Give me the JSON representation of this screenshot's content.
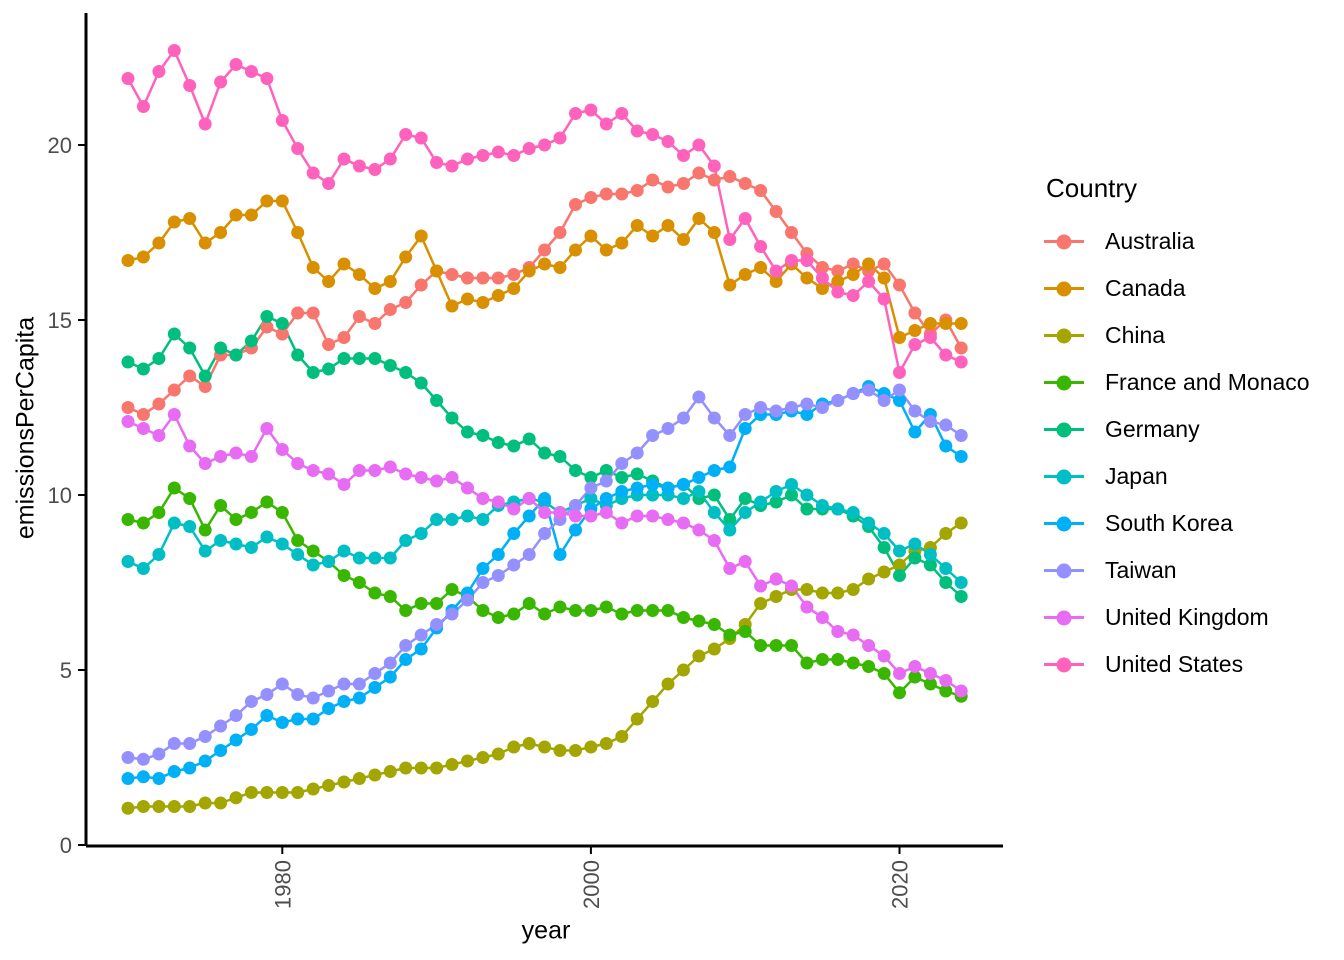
{
  "chart_data": {
    "type": "line",
    "title": "",
    "xlabel": "year",
    "ylabel": "emissionsPerCapita",
    "legend_title": "Country",
    "legend_position": "right",
    "grid": false,
    "theme": "classic",
    "axis_color": "#000000",
    "tick_label_color": "#4d4d4d",
    "xticks": [
      1980,
      2000,
      2020
    ],
    "yticks": [
      0,
      5,
      10,
      15,
      20
    ],
    "xlim": [
      1967.3,
      2026.7
    ],
    "ylim": [
      0,
      23.7
    ],
    "x": [
      1970,
      1971,
      1972,
      1973,
      1974,
      1975,
      1976,
      1977,
      1978,
      1979,
      1980,
      1981,
      1982,
      1983,
      1984,
      1985,
      1986,
      1987,
      1988,
      1989,
      1990,
      1991,
      1992,
      1993,
      1994,
      1995,
      1996,
      1997,
      1998,
      1999,
      2000,
      2001,
      2002,
      2003,
      2004,
      2005,
      2006,
      2007,
      2008,
      2009,
      2010,
      2011,
      2012,
      2013,
      2014,
      2015,
      2016,
      2017,
      2018,
      2019,
      2020,
      2021,
      2022,
      2023,
      2024
    ],
    "series": [
      {
        "name": "Australia",
        "color": "#F8766D",
        "values": [
          12.5,
          12.3,
          12.6,
          13.0,
          13.4,
          13.1,
          14.0,
          14.0,
          14.2,
          14.8,
          14.6,
          15.2,
          15.2,
          14.3,
          14.5,
          15.1,
          14.9,
          15.3,
          15.5,
          16.0,
          16.4,
          16.3,
          16.2,
          16.2,
          16.2,
          16.3,
          16.5,
          17.0,
          17.5,
          18.3,
          18.5,
          18.6,
          18.6,
          18.7,
          19.0,
          18.8,
          18.9,
          19.2,
          19.0,
          19.1,
          18.9,
          18.7,
          18.1,
          17.5,
          16.9,
          16.5,
          16.4,
          16.6,
          16.4,
          16.6,
          16.0,
          15.2,
          14.6,
          15.0,
          14.2
        ]
      },
      {
        "name": "Canada",
        "color": "#D89000",
        "values": [
          16.7,
          16.8,
          17.2,
          17.8,
          17.9,
          17.2,
          17.5,
          18.0,
          18.0,
          18.4,
          18.4,
          17.5,
          16.5,
          16.1,
          16.6,
          16.3,
          15.9,
          16.1,
          16.8,
          17.4,
          16.4,
          15.4,
          15.6,
          15.5,
          15.7,
          15.9,
          16.4,
          16.6,
          16.5,
          17.0,
          17.4,
          17.0,
          17.2,
          17.7,
          17.4,
          17.7,
          17.3,
          17.9,
          17.5,
          16.0,
          16.3,
          16.5,
          16.1,
          16.6,
          16.2,
          15.9,
          16.1,
          16.3,
          16.6,
          16.2,
          14.5,
          14.7,
          14.9,
          14.9,
          14.9
        ]
      },
      {
        "name": "China",
        "color": "#A3A500",
        "values": [
          1.05,
          1.1,
          1.1,
          1.1,
          1.1,
          1.2,
          1.2,
          1.35,
          1.5,
          1.5,
          1.5,
          1.5,
          1.6,
          1.7,
          1.8,
          1.9,
          2.0,
          2.1,
          2.2,
          2.2,
          2.2,
          2.3,
          2.4,
          2.5,
          2.6,
          2.8,
          2.9,
          2.8,
          2.7,
          2.7,
          2.8,
          2.9,
          3.1,
          3.6,
          4.1,
          4.6,
          5.0,
          5.4,
          5.6,
          5.9,
          6.3,
          6.9,
          7.1,
          7.3,
          7.3,
          7.2,
          7.2,
          7.3,
          7.6,
          7.8,
          8.0,
          8.4,
          8.5,
          8.9,
          9.2
        ]
      },
      {
        "name": "France and Monaco",
        "color": "#39B600",
        "values": [
          9.3,
          9.2,
          9.5,
          10.2,
          9.9,
          9.0,
          9.7,
          9.3,
          9.5,
          9.8,
          9.5,
          8.7,
          8.4,
          8.1,
          7.7,
          7.5,
          7.2,
          7.1,
          6.7,
          6.9,
          6.9,
          7.3,
          7.1,
          6.7,
          6.5,
          6.6,
          6.9,
          6.6,
          6.8,
          6.7,
          6.7,
          6.8,
          6.6,
          6.7,
          6.7,
          6.7,
          6.5,
          6.4,
          6.3,
          6.0,
          6.1,
          5.7,
          5.7,
          5.7,
          5.2,
          5.3,
          5.3,
          5.2,
          5.1,
          4.9,
          4.35,
          4.8,
          4.6,
          4.4,
          4.25
        ]
      },
      {
        "name": "Germany",
        "color": "#00BF7D",
        "values": [
          13.8,
          13.6,
          13.9,
          14.6,
          14.2,
          13.4,
          14.2,
          14.0,
          14.4,
          15.1,
          14.9,
          14.0,
          13.5,
          13.6,
          13.9,
          13.9,
          13.9,
          13.7,
          13.5,
          13.2,
          12.7,
          12.2,
          11.8,
          11.7,
          11.5,
          11.4,
          11.6,
          11.2,
          11.1,
          10.7,
          10.5,
          10.7,
          10.5,
          10.6,
          10.4,
          10.2,
          10.3,
          9.9,
          10.0,
          9.3,
          9.9,
          9.7,
          9.8,
          10.0,
          9.6,
          9.6,
          9.6,
          9.4,
          9.1,
          8.5,
          7.7,
          8.2,
          8.0,
          7.5,
          7.1
        ]
      },
      {
        "name": "Japan",
        "color": "#00BFC4",
        "values": [
          8.1,
          7.9,
          8.3,
          9.2,
          9.1,
          8.4,
          8.7,
          8.6,
          8.5,
          8.8,
          8.6,
          8.3,
          8.0,
          8.1,
          8.4,
          8.2,
          8.2,
          8.2,
          8.7,
          8.9,
          9.3,
          9.3,
          9.4,
          9.3,
          9.7,
          9.8,
          9.9,
          9.8,
          9.5,
          9.7,
          9.9,
          9.7,
          9.9,
          10.0,
          10.0,
          10.0,
          9.9,
          10.1,
          9.5,
          9.0,
          9.5,
          9.8,
          10.1,
          10.3,
          10.0,
          9.7,
          9.6,
          9.5,
          9.2,
          8.9,
          8.4,
          8.6,
          8.3,
          7.9,
          7.5
        ]
      },
      {
        "name": "South Korea",
        "color": "#00B0F6",
        "values": [
          1.9,
          1.95,
          1.9,
          2.1,
          2.2,
          2.4,
          2.7,
          3.0,
          3.3,
          3.7,
          3.5,
          3.6,
          3.6,
          3.9,
          4.1,
          4.2,
          4.5,
          4.8,
          5.3,
          5.6,
          6.2,
          6.7,
          7.2,
          7.9,
          8.3,
          8.9,
          9.4,
          9.9,
          8.3,
          9.0,
          9.6,
          9.9,
          10.1,
          10.2,
          10.3,
          10.2,
          10.3,
          10.5,
          10.7,
          10.8,
          11.9,
          12.3,
          12.3,
          12.4,
          12.3,
          12.6,
          12.7,
          12.9,
          13.1,
          12.9,
          12.7,
          11.8,
          12.3,
          11.4,
          11.1
        ]
      },
      {
        "name": "Taiwan",
        "color": "#9590FF",
        "values": [
          2.5,
          2.45,
          2.6,
          2.9,
          2.9,
          3.1,
          3.4,
          3.7,
          4.1,
          4.3,
          4.6,
          4.3,
          4.2,
          4.4,
          4.6,
          4.6,
          4.9,
          5.2,
          5.7,
          6.0,
          6.3,
          6.6,
          7.0,
          7.5,
          7.7,
          8.0,
          8.3,
          8.9,
          9.3,
          9.7,
          10.2,
          10.4,
          10.9,
          11.2,
          11.7,
          11.9,
          12.2,
          12.8,
          12.2,
          11.7,
          12.3,
          12.5,
          12.4,
          12.5,
          12.6,
          12.5,
          12.7,
          12.9,
          13.0,
          12.7,
          13.0,
          12.4,
          12.1,
          12.0,
          11.7
        ]
      },
      {
        "name": "United Kingdom",
        "color": "#E76BF3",
        "values": [
          12.1,
          11.9,
          11.7,
          12.3,
          11.4,
          10.9,
          11.1,
          11.2,
          11.1,
          11.9,
          11.3,
          10.9,
          10.7,
          10.6,
          10.3,
          10.7,
          10.7,
          10.8,
          10.6,
          10.5,
          10.4,
          10.5,
          10.2,
          9.9,
          9.8,
          9.6,
          9.9,
          9.5,
          9.5,
          9.4,
          9.4,
          9.5,
          9.2,
          9.4,
          9.4,
          9.3,
          9.2,
          9.0,
          8.7,
          7.9,
          8.1,
          7.4,
          7.6,
          7.4,
          6.8,
          6.5,
          6.1,
          6.0,
          5.7,
          5.4,
          4.9,
          5.1,
          4.9,
          4.7,
          4.4
        ]
      },
      {
        "name": "United States",
        "color": "#FF62BC",
        "values": [
          21.9,
          21.1,
          22.1,
          22.7,
          21.7,
          20.6,
          21.8,
          22.3,
          22.1,
          21.9,
          20.7,
          19.9,
          19.2,
          18.9,
          19.6,
          19.4,
          19.3,
          19.6,
          20.3,
          20.2,
          19.5,
          19.4,
          19.6,
          19.7,
          19.8,
          19.7,
          19.9,
          20.0,
          20.2,
          20.9,
          21.0,
          20.6,
          20.9,
          20.4,
          20.3,
          20.1,
          19.7,
          20.0,
          19.4,
          17.3,
          17.9,
          17.1,
          16.4,
          16.7,
          16.7,
          16.2,
          15.8,
          15.7,
          16.1,
          15.6,
          13.5,
          14.3,
          14.5,
          14.0,
          13.8
        ]
      }
    ]
  }
}
